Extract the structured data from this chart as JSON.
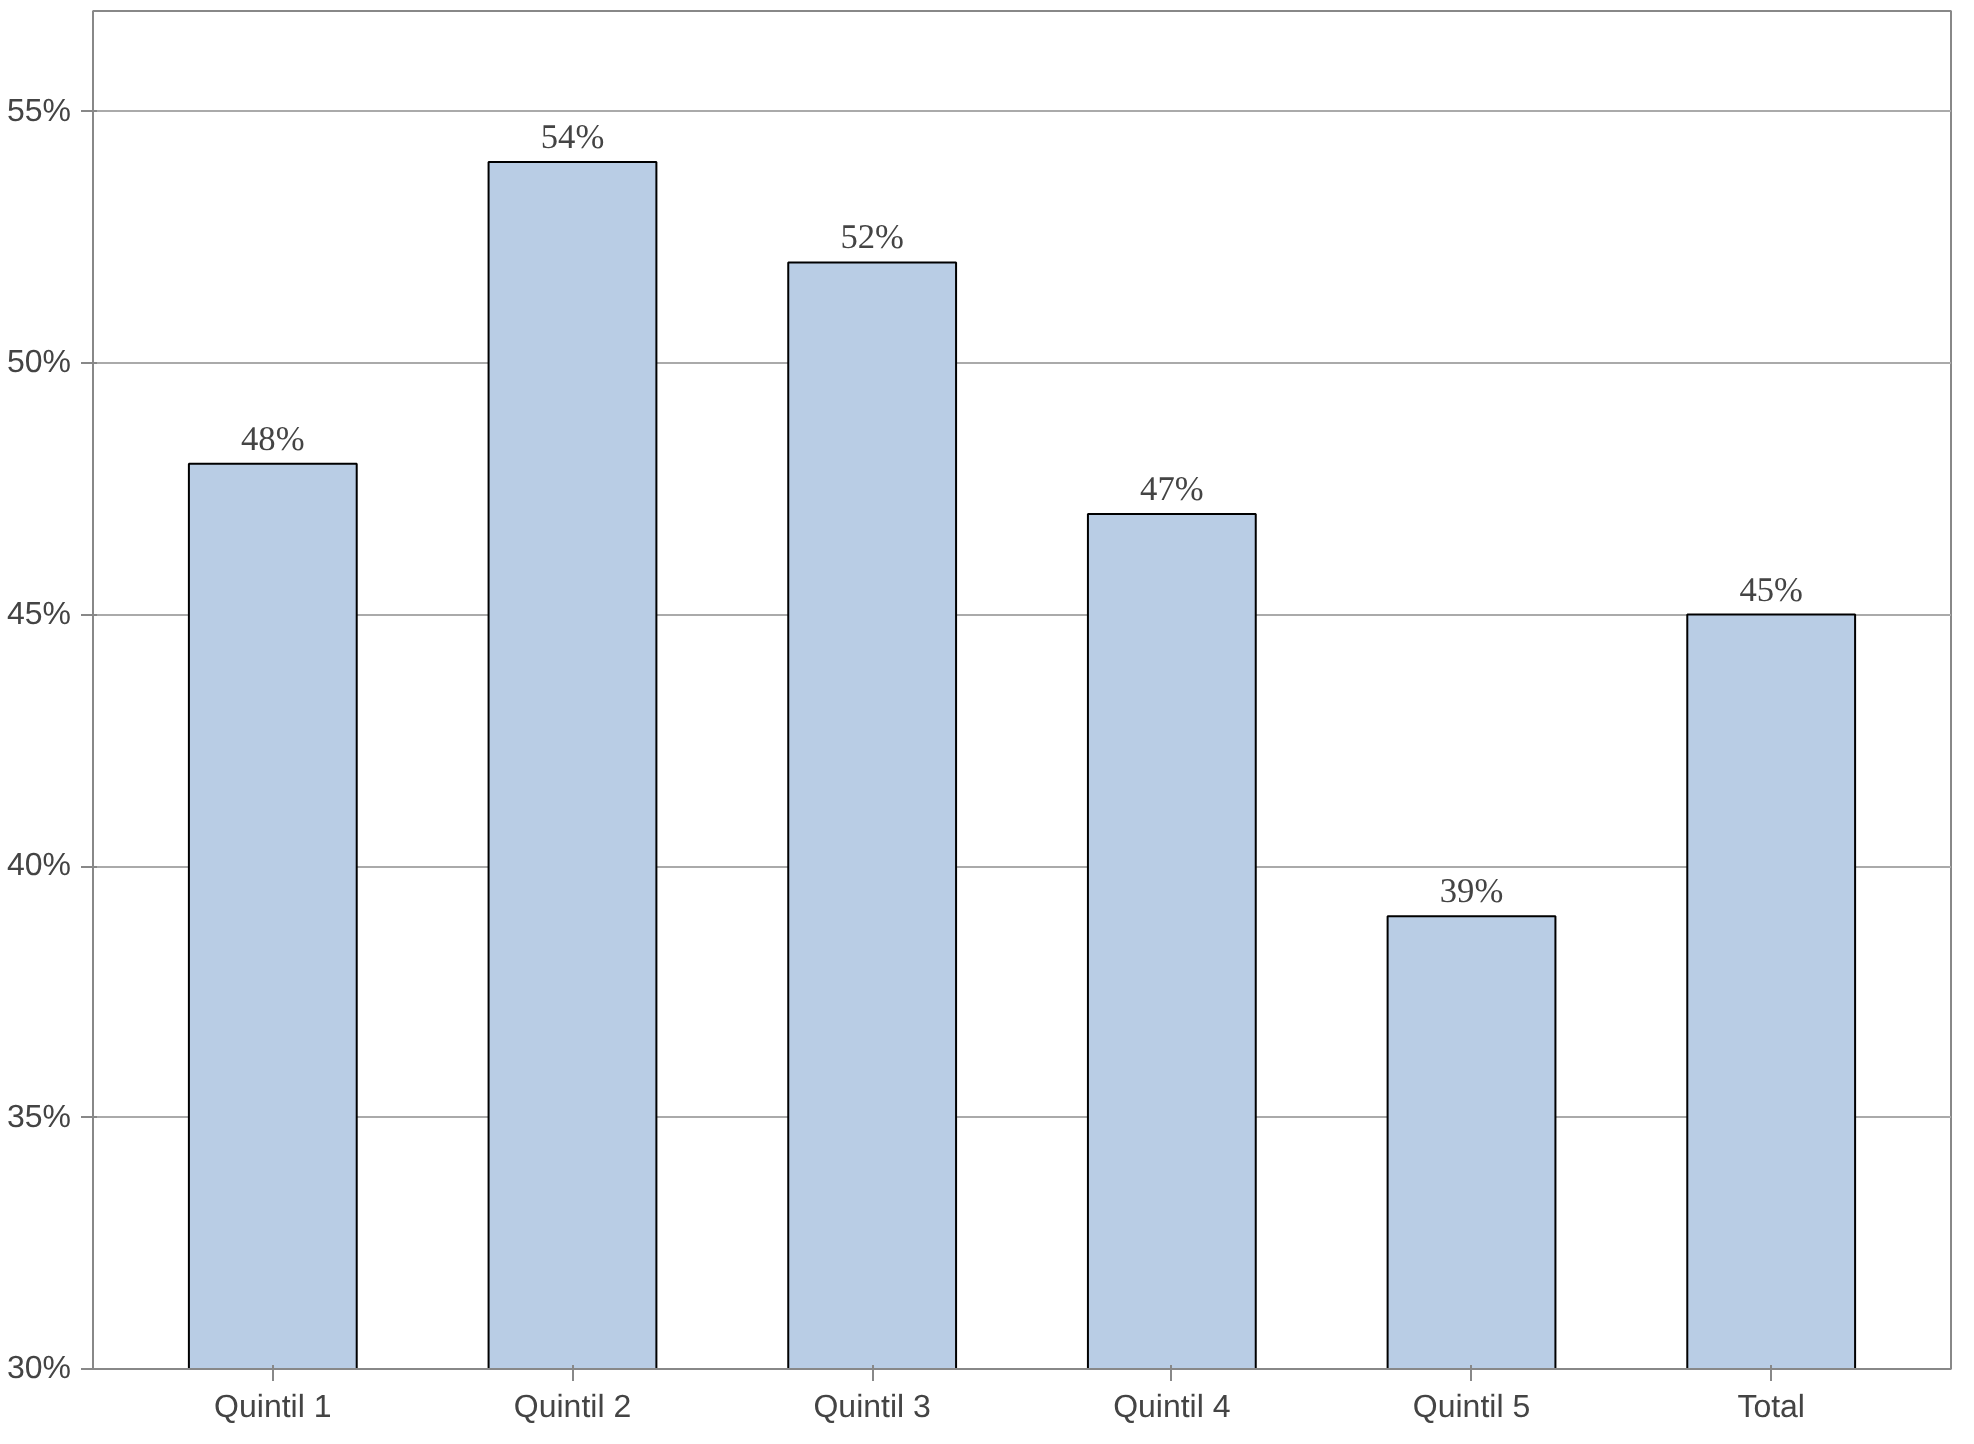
{
  "chart_data": {
    "type": "bar",
    "categories": [
      "Quintil 1",
      "Quintil 2",
      "Quintil 3",
      "Quintil 4",
      "Quintil 5",
      "Total"
    ],
    "values": [
      48,
      54,
      52,
      47,
      39,
      45
    ],
    "value_labels": [
      "48%",
      "54%",
      "52%",
      "47%",
      "39%",
      "45%"
    ],
    "color": "#b9cde5",
    "ylim": [
      30,
      57
    ],
    "yticks": [
      {
        "value": 30,
        "label": "30%"
      },
      {
        "value": 35,
        "label": "35%"
      },
      {
        "value": 40,
        "label": "40%"
      },
      {
        "value": 45,
        "label": "45%"
      },
      {
        "value": 50,
        "label": "50%"
      },
      {
        "value": 55,
        "label": "55%"
      }
    ],
    "grid": "y"
  }
}
